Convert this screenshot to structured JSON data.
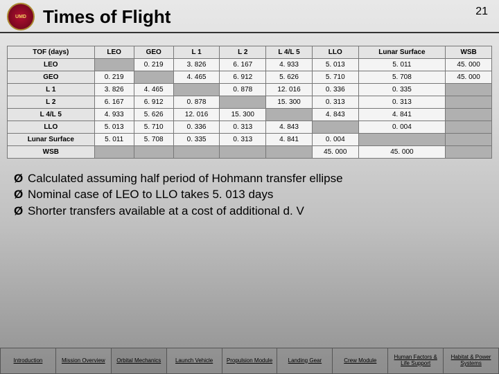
{
  "header": {
    "title": "Times of Flight",
    "page_number": "21"
  },
  "table": {
    "corner": "TOF (days)",
    "cols": [
      "LEO",
      "GEO",
      "L 1",
      "L 2",
      "L 4/L 5",
      "LLO",
      "Lunar Surface",
      "WSB"
    ],
    "rows": [
      "LEO",
      "GEO",
      "L 1",
      "L 2",
      "L 4/L 5",
      "LLO",
      "Lunar Surface",
      "WSB"
    ],
    "cells": [
      [
        "",
        "0. 219",
        "3. 826",
        "6. 167",
        "4. 933",
        "5. 013",
        "5. 011",
        "45. 000"
      ],
      [
        "0. 219",
        "",
        "4. 465",
        "6. 912",
        "5. 626",
        "5. 710",
        "5. 708",
        "45. 000"
      ],
      [
        "3. 826",
        "4. 465",
        "",
        "0. 878",
        "12. 016",
        "0. 336",
        "0. 335",
        ""
      ],
      [
        "6. 167",
        "6. 912",
        "0. 878",
        "",
        "15. 300",
        "0. 313",
        "0. 313",
        ""
      ],
      [
        "4. 933",
        "5. 626",
        "12. 016",
        "15. 300",
        "",
        "4. 843",
        "4. 841",
        ""
      ],
      [
        "5. 013",
        "5. 710",
        "0. 336",
        "0. 313",
        "4. 843",
        "",
        "0. 004",
        ""
      ],
      [
        "5. 011",
        "5. 708",
        "0. 335",
        "0. 313",
        "4. 841",
        "0. 004",
        "",
        ""
      ],
      [
        "",
        "",
        "",
        "",
        "",
        "45. 000",
        "45. 000",
        ""
      ]
    ]
  },
  "bullets": [
    "Calculated assuming half period of Hohmann transfer ellipse",
    "Nominal case of LEO to LLO takes 5. 013 days",
    "Shorter transfers available at a cost of additional d. V"
  ],
  "nav": {
    "items": [
      "Introduction",
      "Mission Overview",
      "Orbital Mechanics",
      "Launch Vehicle",
      "Propulsion Module",
      "Landing Gear",
      "Crew Module",
      "Human Factors & Life Support",
      "Habitat & Power Systems"
    ],
    "active_index": 2
  },
  "style": {
    "title_fontsize": 26,
    "body_fontsize": 17,
    "table_fontsize": 10,
    "nav_fontsize": 8,
    "border_color": "#777",
    "header_bg": "#e4e4e4",
    "cell_bg": "#f4f4f4",
    "diag_bg": "#b0b0b0"
  }
}
